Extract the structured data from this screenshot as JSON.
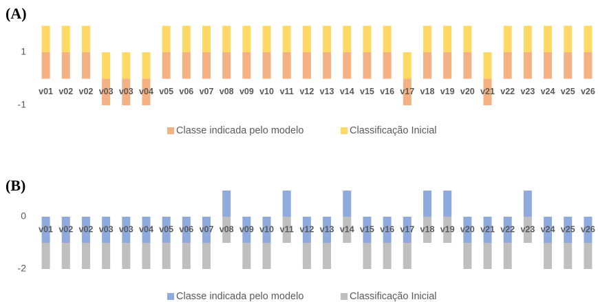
{
  "chart_data": [
    {
      "type": "bar",
      "stacked": true,
      "title": "(A)",
      "categories": [
        "v01",
        "v02",
        "v02",
        "v03",
        "v03",
        "v04",
        "v05",
        "v06",
        "v07",
        "v08",
        "v09",
        "v10",
        "v11",
        "v12",
        "v13",
        "v14",
        "v15",
        "v16",
        "v17",
        "v18",
        "v19",
        "v20",
        "v21",
        "v22",
        "v23",
        "v24",
        "v25",
        "v26"
      ],
      "series": [
        {
          "name": "Classe indicada pelo modelo",
          "color": "#F4B183",
          "values": [
            1,
            1,
            1,
            -1,
            -1,
            -1,
            1,
            1,
            1,
            1,
            1,
            1,
            1,
            1,
            1,
            1,
            1,
            1,
            -1,
            1,
            1,
            1,
            -1,
            1,
            1,
            1,
            1,
            1
          ]
        },
        {
          "name": "Classificação Inicial",
          "color": "#FFD966",
          "values": [
            1,
            1,
            1,
            1,
            1,
            1,
            1,
            1,
            1,
            1,
            1,
            1,
            1,
            1,
            1,
            1,
            1,
            1,
            1,
            1,
            1,
            1,
            1,
            1,
            1,
            1,
            1,
            1
          ]
        }
      ],
      "ylim": [
        -1,
        2
      ],
      "yticks": [
        -1,
        1
      ],
      "legend": "bottom"
    },
    {
      "type": "bar",
      "stacked": true,
      "title": "(B)",
      "categories": [
        "v01",
        "v02",
        "v02",
        "v03",
        "v03",
        "v04",
        "v05",
        "v06",
        "v07",
        "v08",
        "v09",
        "v10",
        "v11",
        "v12",
        "v13",
        "v14",
        "v15",
        "v16",
        "v17",
        "v18",
        "v19",
        "v20",
        "v21",
        "v22",
        "v23",
        "v24",
        "v25",
        "v26"
      ],
      "series": [
        {
          "name": "Classe indicada pelo modelo",
          "color": "#8FAADC",
          "values": [
            -1,
            -1,
            -1,
            -1,
            -1,
            -1,
            -1,
            -1,
            -1,
            1,
            -1,
            -1,
            1,
            -1,
            -1,
            1,
            -1,
            -1,
            -1,
            1,
            1,
            -1,
            -1,
            -1,
            1,
            -1,
            -1,
            -1
          ]
        },
        {
          "name": "Classificação Inicial",
          "color": "#BFBFBF",
          "values": [
            -1,
            -1,
            -1,
            -1,
            -1,
            -1,
            -1,
            -1,
            -1,
            -1,
            -1,
            -1,
            -1,
            -1,
            -1,
            -1,
            -1,
            -1,
            -1,
            -1,
            -1,
            -1,
            -1,
            -1,
            -1,
            -1,
            -1,
            -1
          ]
        }
      ],
      "ylim": [
        -2,
        1
      ],
      "yticks": [
        -2,
        0
      ],
      "legend": "bottom"
    }
  ]
}
